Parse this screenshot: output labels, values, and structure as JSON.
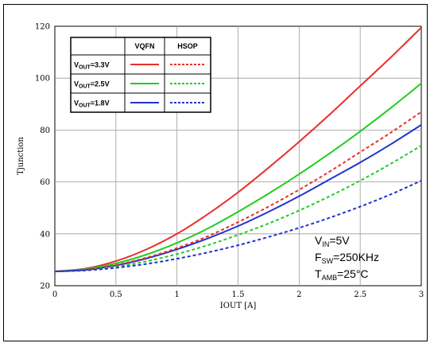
{
  "chart_data": {
    "type": "line",
    "xlabel": "IOUT [A]",
    "ylabel": "Tjunction",
    "xlim": [
      0,
      3
    ],
    "ylim": [
      20,
      120
    ],
    "xticks": [
      0,
      0.5,
      1,
      1.5,
      2,
      2.5,
      3
    ],
    "xtick_labels": [
      "0",
      "0.5",
      "1",
      "1.5",
      "2",
      "2.5",
      "3"
    ],
    "yticks": [
      20,
      40,
      60,
      80,
      100,
      120
    ],
    "ytick_labels": [
      "20",
      "40",
      "60",
      "80",
      "100",
      "120"
    ],
    "grid": true,
    "legend": {
      "placement": "top-left",
      "columns": [
        "VQFN",
        "HSOP"
      ],
      "rows": [
        {
          "main": "V",
          "sub": "OUT",
          "rest": "=3.3V"
        },
        {
          "main": "V",
          "sub": "OUT",
          "rest": "=2.5V"
        },
        {
          "main": "V",
          "sub": "OUT",
          "rest": "=1.8V"
        }
      ]
    },
    "conditions": [
      {
        "main": "V",
        "sub": "IN",
        "rest": "=5V"
      },
      {
        "main": "F",
        "sub": "SW",
        "rest": "=250KHz"
      },
      {
        "main": "T",
        "sub": "AMB",
        "rest": "=25°C"
      }
    ],
    "series": [
      {
        "package": "VQFN",
        "row": 0,
        "color": "#e8302c",
        "style": "solid",
        "x": [
          0,
          0.25,
          0.5,
          0.75,
          1,
          1.25,
          1.5,
          1.75,
          2,
          2.25,
          2.5,
          2.75,
          3
        ],
        "y": [
          25.5,
          26.6,
          29.5,
          34,
          40,
          47.5,
          56,
          65.5,
          75.5,
          86,
          97,
          108,
          119.5
        ]
      },
      {
        "package": "VQFN",
        "row": 1,
        "color": "#22cc22",
        "style": "solid",
        "x": [
          0,
          0.25,
          0.5,
          0.75,
          1,
          1.25,
          1.5,
          1.75,
          2,
          2.25,
          2.5,
          2.75,
          3
        ],
        "y": [
          25.5,
          26.4,
          28.6,
          32,
          36.5,
          42,
          48.5,
          55.5,
          63,
          71,
          79.5,
          88.5,
          98
        ]
      },
      {
        "package": "VQFN",
        "row": 2,
        "color": "#2233cc",
        "style": "solid",
        "x": [
          0,
          0.25,
          0.5,
          0.75,
          1,
          1.25,
          1.5,
          1.75,
          2,
          2.25,
          2.5,
          2.75,
          3
        ],
        "y": [
          25.5,
          26.1,
          27.8,
          30.5,
          34,
          38.2,
          43,
          48.5,
          54.5,
          61,
          67.5,
          74.5,
          82
        ]
      },
      {
        "package": "HSOP",
        "row": 0,
        "color": "#e8302c",
        "style": "dashed",
        "x": [
          0,
          0.25,
          0.5,
          0.75,
          1,
          1.25,
          1.5,
          1.75,
          2,
          2.25,
          2.5,
          2.75,
          3
        ],
        "y": [
          25.5,
          26.2,
          28,
          30.8,
          34.5,
          39,
          44.5,
          50.5,
          57,
          64,
          71.5,
          79,
          87
        ]
      },
      {
        "package": "HSOP",
        "row": 1,
        "color": "#22cc22",
        "style": "dashed",
        "x": [
          0,
          0.25,
          0.5,
          0.75,
          1,
          1.25,
          1.5,
          1.75,
          2,
          2.25,
          2.5,
          2.75,
          3
        ],
        "y": [
          25.5,
          26,
          27.3,
          29.4,
          32.2,
          35.6,
          39.6,
          44,
          49,
          54.5,
          60.5,
          67,
          74
        ]
      },
      {
        "package": "HSOP",
        "row": 2,
        "color": "#2233cc",
        "style": "dashed",
        "x": [
          0,
          0.25,
          0.5,
          0.75,
          1,
          1.25,
          1.5,
          1.75,
          2,
          2.25,
          2.5,
          2.75,
          3
        ],
        "y": [
          25.5,
          25.9,
          26.9,
          28.4,
          30.4,
          32.8,
          35.6,
          38.8,
          42.3,
          46.2,
          50.5,
          55.2,
          60.5
        ]
      }
    ]
  }
}
